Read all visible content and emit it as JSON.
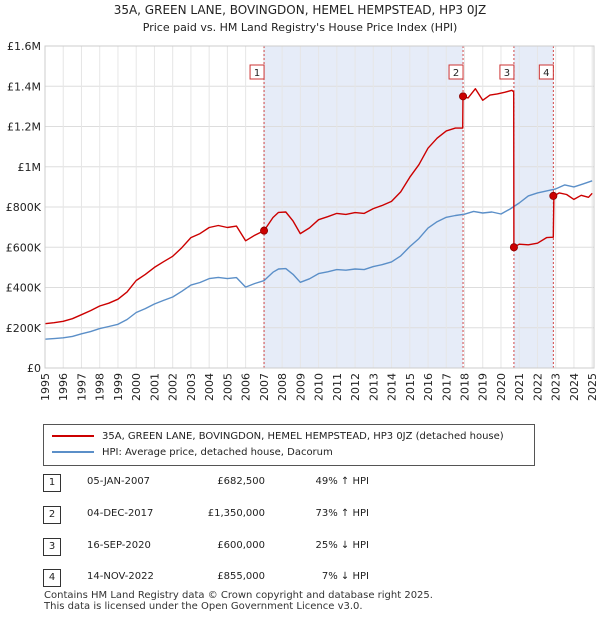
{
  "chart_data": {
    "type": "line",
    "title": "35A, GREEN LANE, BOVINGDON, HEMEL HEMPSTEAD, HP3 0JZ",
    "subtitle": "Price paid vs. HM Land Registry's House Price Index (HPI)",
    "xlim": [
      1995,
      2025.1
    ],
    "ylim": [
      0,
      1600000
    ],
    "y_ticks": [
      {
        "value": 0,
        "label": "£0"
      },
      {
        "value": 200000,
        "label": "£200K"
      },
      {
        "value": 400000,
        "label": "£400K"
      },
      {
        "value": 600000,
        "label": "£600K"
      },
      {
        "value": 800000,
        "label": "£800K"
      },
      {
        "value": 1000000,
        "label": "£1M"
      },
      {
        "value": 1200000,
        "label": "£1.2M"
      },
      {
        "value": 1400000,
        "label": "£1.4M"
      },
      {
        "value": 1600000,
        "label": "£1.6M"
      }
    ],
    "x_ticks": [
      "1995",
      "1996",
      "1997",
      "1998",
      "1999",
      "2000",
      "2001",
      "2002",
      "2003",
      "2004",
      "2005",
      "2006",
      "2007",
      "2008",
      "2009",
      "2010",
      "2011",
      "2012",
      "2013",
      "2014",
      "2015",
      "2016",
      "2017",
      "2018",
      "2019",
      "2020",
      "2021",
      "2022",
      "2023",
      "2024",
      "2025"
    ],
    "series": [
      {
        "name": "35A, GREEN LANE, BOVINGDON, HEMEL HEMPSTEAD, HP3 0JZ (detached house)",
        "color": "#cc0000",
        "x": [
          1995.0,
          1995.5,
          1996.0,
          1996.5,
          1997.0,
          1997.5,
          1998.0,
          1998.5,
          1999.0,
          1999.5,
          2000.0,
          2000.5,
          2001.0,
          2001.5,
          2002.0,
          2002.5,
          2003.0,
          2003.5,
          2004.0,
          2004.5,
          2005.0,
          2005.5,
          2006.0,
          2006.5,
          2007.01,
          2007.5,
          2007.8,
          2008.2,
          2008.6,
          2009.0,
          2009.5,
          2010.0,
          2010.5,
          2011.0,
          2011.5,
          2012.0,
          2012.5,
          2013.0,
          2013.5,
          2014.0,
          2014.5,
          2015.0,
          2015.5,
          2016.0,
          2016.5,
          2017.0,
          2017.5,
          2017.9,
          2017.92,
          2018.2,
          2018.6,
          2019.0,
          2019.4,
          2019.8,
          2020.2,
          2020.6,
          2020.7,
          2020.71,
          2021.0,
          2021.5,
          2022.0,
          2022.5,
          2022.87,
          2022.9,
          2023.2,
          2023.6,
          2024.0,
          2024.4,
          2024.8,
          2025.0
        ],
        "values": [
          220000,
          225000,
          232000,
          245000,
          265000,
          285000,
          308000,
          322000,
          342000,
          378000,
          435000,
          465000,
          500000,
          528000,
          555000,
          598000,
          648000,
          668000,
          698000,
          708000,
          698000,
          705000,
          632000,
          660000,
          682500,
          748000,
          773000,
          775000,
          730000,
          668000,
          696000,
          737000,
          752000,
          768000,
          763000,
          772000,
          768000,
          792000,
          808000,
          828000,
          875000,
          948000,
          1010000,
          1092000,
          1142000,
          1178000,
          1192000,
          1192000,
          1350000,
          1342000,
          1388000,
          1330000,
          1356000,
          1362000,
          1370000,
          1380000,
          1372000,
          600000,
          615000,
          612000,
          620000,
          648000,
          650000,
          855000,
          870000,
          862000,
          838000,
          858000,
          848000,
          868000
        ]
      },
      {
        "name": "HPI: Average price, detached house, Dacorum",
        "color": "#5b8fc8",
        "x": [
          1995.0,
          1995.5,
          1996.0,
          1996.5,
          1997.0,
          1997.5,
          1998.0,
          1998.5,
          1999.0,
          1999.5,
          2000.0,
          2000.5,
          2001.0,
          2001.5,
          2002.0,
          2002.5,
          2003.0,
          2003.5,
          2004.0,
          2004.5,
          2005.0,
          2005.5,
          2006.0,
          2006.5,
          2007.0,
          2007.5,
          2007.8,
          2008.2,
          2008.6,
          2009.0,
          2009.5,
          2010.0,
          2010.5,
          2011.0,
          2011.5,
          2012.0,
          2012.5,
          2013.0,
          2013.5,
          2014.0,
          2014.5,
          2015.0,
          2015.5,
          2016.0,
          2016.5,
          2017.0,
          2017.5,
          2018.0,
          2018.5,
          2019.0,
          2019.5,
          2020.0,
          2020.5,
          2021.0,
          2021.5,
          2022.0,
          2022.5,
          2023.0,
          2023.5,
          2024.0,
          2024.5,
          2025.0
        ],
        "values": [
          143000,
          146000,
          150000,
          157000,
          170000,
          181000,
          196000,
          206000,
          217000,
          241000,
          276000,
          295000,
          318000,
          336000,
          353000,
          381000,
          412000,
          425000,
          444000,
          450000,
          444000,
          449000,
          402000,
          420000,
          434000,
          476000,
          492000,
          494000,
          465000,
          426000,
          443000,
          469000,
          478000,
          489000,
          486000,
          492000,
          489000,
          504000,
          514000,
          527000,
          557000,
          603000,
          643000,
          695000,
          727000,
          749000,
          758000,
          764000,
          778000,
          770000,
          775000,
          765000,
          790000,
          820000,
          855000,
          870000,
          880000,
          890000,
          910000,
          900000,
          915000,
          930000
        ]
      }
    ],
    "sale_markers": [
      {
        "label": "1",
        "x": 2007.01,
        "value": 682500
      },
      {
        "label": "2",
        "x": 2017.92,
        "value": 1350000
      },
      {
        "label": "3",
        "x": 2020.71,
        "value": 600000
      },
      {
        "label": "4",
        "x": 2022.87,
        "value": 855000
      }
    ],
    "shaded_periods": [
      [
        2007.01,
        2017.92
      ],
      [
        2020.71,
        2022.87
      ]
    ]
  },
  "legend": {
    "property_label": "35A, GREEN LANE, BOVINGDON, HEMEL HEMPSTEAD, HP3 0JZ (detached house)",
    "hpi_label": "HPI: Average price, detached house, Dacorum"
  },
  "sales": [
    {
      "num": "1",
      "date": "05-JAN-2007",
      "price": "£682,500",
      "hpi": "49% ↑ HPI"
    },
    {
      "num": "2",
      "date": "04-DEC-2017",
      "price": "£1,350,000",
      "hpi": "73% ↑ HPI"
    },
    {
      "num": "3",
      "date": "16-SEP-2020",
      "price": "£600,000",
      "hpi": "25% ↓ HPI"
    },
    {
      "num": "4",
      "date": "14-NOV-2022",
      "price": "£855,000",
      "hpi": "7% ↓ HPI"
    }
  ],
  "footer": {
    "line1": "Contains HM Land Registry data © Crown copyright and database right 2025.",
    "line2": "This data is licensed under the Open Government Licence v3.0."
  }
}
